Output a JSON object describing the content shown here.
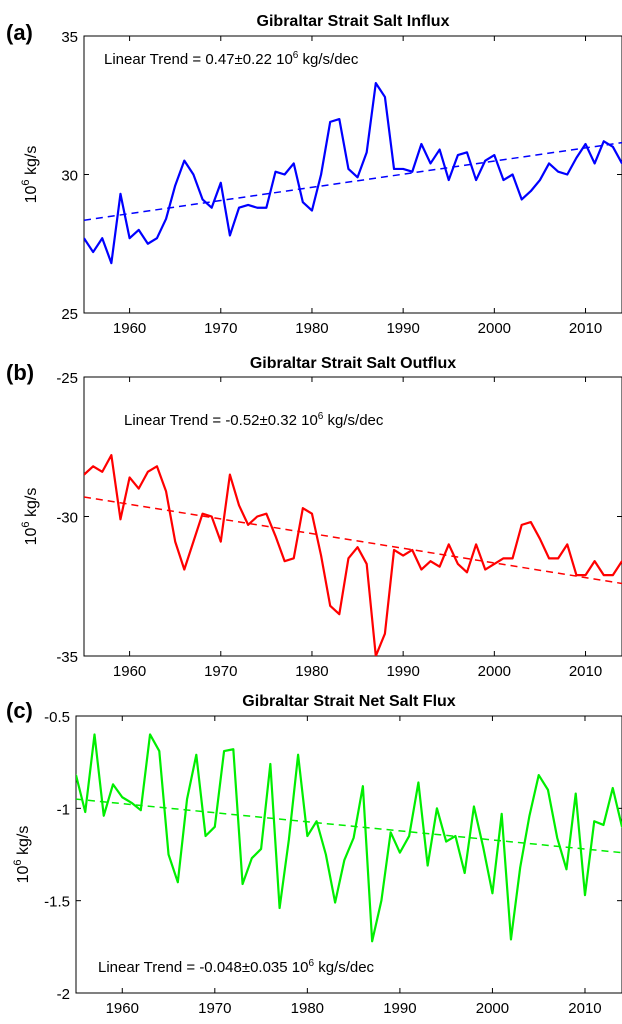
{
  "chart_data": [
    {
      "panel": "(a)",
      "type": "line",
      "title": "Gibraltar Strait Salt Influx",
      "ylabel": "kg/s",
      "ylabel_prefix": "10",
      "ylabel_sup": "6",
      "trend_text": "Linear Trend = 0.47±0.22 10",
      "trend_sup": "6",
      "trend_suffix": " kg/s/dec",
      "xlim": [
        1955,
        2014
      ],
      "ylim": [
        25,
        35
      ],
      "xticks": [
        1960,
        1970,
        1980,
        1990,
        2000,
        2010
      ],
      "yticks": [
        25,
        30,
        35
      ],
      "color": "#0000ff",
      "trend_line": {
        "x": [
          1955,
          2014
        ],
        "y": [
          28.35,
          31.15
        ]
      },
      "x": [
        1955,
        1956,
        1957,
        1958,
        1959,
        1960,
        1961,
        1962,
        1963,
        1964,
        1965,
        1966,
        1967,
        1968,
        1969,
        1970,
        1971,
        1972,
        1973,
        1974,
        1975,
        1976,
        1977,
        1978,
        1979,
        1980,
        1981,
        1982,
        1983,
        1984,
        1985,
        1986,
        1987,
        1988,
        1989,
        1990,
        1991,
        1992,
        1993,
        1994,
        1995,
        1996,
        1997,
        1998,
        1999,
        2000,
        2001,
        2002,
        2003,
        2004,
        2005,
        2006,
        2007,
        2008,
        2009,
        2010,
        2011,
        2012,
        2013,
        2014
      ],
      "values": [
        27.7,
        27.2,
        27.7,
        26.8,
        29.3,
        27.7,
        28.0,
        27.5,
        27.7,
        28.4,
        29.6,
        30.5,
        30.0,
        29.1,
        28.8,
        29.7,
        27.8,
        28.8,
        28.9,
        28.8,
        28.8,
        30.1,
        30.0,
        30.4,
        29.0,
        28.7,
        30.0,
        31.9,
        32.0,
        30.2,
        29.9,
        30.8,
        33.3,
        32.8,
        30.2,
        30.2,
        30.1,
        31.1,
        30.4,
        30.9,
        29.8,
        30.7,
        30.8,
        29.8,
        30.5,
        30.7,
        29.8,
        30.0,
        29.1,
        29.4,
        29.8,
        30.4,
        30.1,
        30.0,
        30.6,
        31.1,
        30.4,
        31.2,
        31.0,
        30.4
      ]
    },
    {
      "panel": "(b)",
      "type": "line",
      "title": "Gibraltar Strait Salt Outflux",
      "ylabel": "kg/s",
      "ylabel_prefix": "10",
      "ylabel_sup": "6",
      "trend_text": "Linear Trend = -0.52±0.32 10",
      "trend_sup": "6",
      "trend_suffix": " kg/s/dec",
      "xlim": [
        1955,
        2014
      ],
      "ylim": [
        -35,
        -25
      ],
      "xticks": [
        1960,
        1970,
        1980,
        1990,
        2000,
        2010
      ],
      "yticks": [
        -35,
        -30,
        -25
      ],
      "color": "#ff0000",
      "trend_line": {
        "x": [
          1955,
          2014
        ],
        "y": [
          -29.3,
          -32.4
        ]
      },
      "x": [
        1955,
        1956,
        1957,
        1958,
        1959,
        1960,
        1961,
        1962,
        1963,
        1964,
        1965,
        1966,
        1967,
        1968,
        1969,
        1970,
        1971,
        1972,
        1973,
        1974,
        1975,
        1976,
        1977,
        1978,
        1979,
        1980,
        1981,
        1982,
        1983,
        1984,
        1985,
        1986,
        1987,
        1988,
        1989,
        1990,
        1991,
        1992,
        1993,
        1994,
        1995,
        1996,
        1997,
        1998,
        1999,
        2000,
        2001,
        2002,
        2003,
        2004,
        2005,
        2006,
        2007,
        2008,
        2009,
        2010,
        2011,
        2012,
        2013,
        2014
      ],
      "values": [
        -28.5,
        -28.2,
        -28.4,
        -27.8,
        -30.1,
        -28.6,
        -29.0,
        -28.4,
        -28.2,
        -29.1,
        -30.9,
        -31.9,
        -30.9,
        -29.9,
        -30.0,
        -30.9,
        -28.5,
        -29.6,
        -30.3,
        -30.0,
        -29.9,
        -30.7,
        -31.6,
        -31.5,
        -29.7,
        -29.9,
        -31.4,
        -33.2,
        -33.5,
        -31.5,
        -31.1,
        -31.7,
        -35.0,
        -34.2,
        -31.2,
        -31.4,
        -31.2,
        -31.9,
        -31.6,
        -31.8,
        -31.0,
        -31.7,
        -32.0,
        -31.0,
        -31.9,
        -31.7,
        -31.5,
        -31.5,
        -30.3,
        -30.2,
        -30.8,
        -31.5,
        -31.5,
        -31.0,
        -32.1,
        -32.1,
        -31.6,
        -32.1,
        -32.1,
        -31.6
      ]
    },
    {
      "panel": "(c)",
      "type": "line",
      "title": "Gibraltar Strait Net Salt Flux",
      "ylabel": "kg/s",
      "ylabel_prefix": "10",
      "ylabel_sup": "6",
      "trend_text": "Linear Trend = -0.048±0.035 10",
      "trend_sup": "6",
      "trend_suffix": " kg/s/dec",
      "xlim": [
        1955,
        2014
      ],
      "ylim": [
        -2,
        -0.5
      ],
      "xticks": [
        1960,
        1970,
        1980,
        1990,
        2000,
        2010
      ],
      "yticks": [
        -2,
        -1.5,
        -1,
        -0.5
      ],
      "ytick_labels": [
        "-2",
        "-1.5",
        "-1",
        "-0.5"
      ],
      "color": "#00ee00",
      "trend_line": {
        "x": [
          1955,
          2014
        ],
        "y": [
          -0.95,
          -1.24
        ]
      },
      "x": [
        1955,
        1956,
        1957,
        1958,
        1959,
        1960,
        1961,
        1962,
        1963,
        1964,
        1965,
        1966,
        1967,
        1968,
        1969,
        1970,
        1971,
        1972,
        1973,
        1974,
        1975,
        1976,
        1977,
        1978,
        1979,
        1980,
        1981,
        1982,
        1983,
        1984,
        1985,
        1986,
        1987,
        1988,
        1989,
        1990,
        1991,
        1992,
        1993,
        1994,
        1995,
        1996,
        1997,
        1998,
        1999,
        2000,
        2001,
        2002,
        2003,
        2004,
        2005,
        2006,
        2007,
        2008,
        2009,
        2010,
        2011,
        2012,
        2013,
        2014
      ],
      "values": [
        -0.82,
        -1.02,
        -0.6,
        -1.04,
        -0.87,
        -0.94,
        -0.97,
        -1.01,
        -0.6,
        -0.69,
        -1.25,
        -1.4,
        -0.95,
        -0.71,
        -1.15,
        -1.1,
        -0.69,
        -0.68,
        -1.41,
        -1.27,
        -1.22,
        -0.76,
        -1.54,
        -1.17,
        -0.71,
        -1.15,
        -1.07,
        -1.25,
        -1.51,
        -1.28,
        -1.16,
        -0.88,
        -1.72,
        -1.5,
        -1.13,
        -1.24,
        -1.15,
        -0.86,
        -1.31,
        -1.0,
        -1.18,
        -1.15,
        -1.35,
        -0.99,
        -1.21,
        -1.46,
        -1.03,
        -1.71,
        -1.32,
        -1.04,
        -0.82,
        -0.9,
        -1.16,
        -1.33,
        -0.92,
        -1.47,
        -1.07,
        -1.09,
        -0.89,
        -1.1
      ]
    }
  ]
}
